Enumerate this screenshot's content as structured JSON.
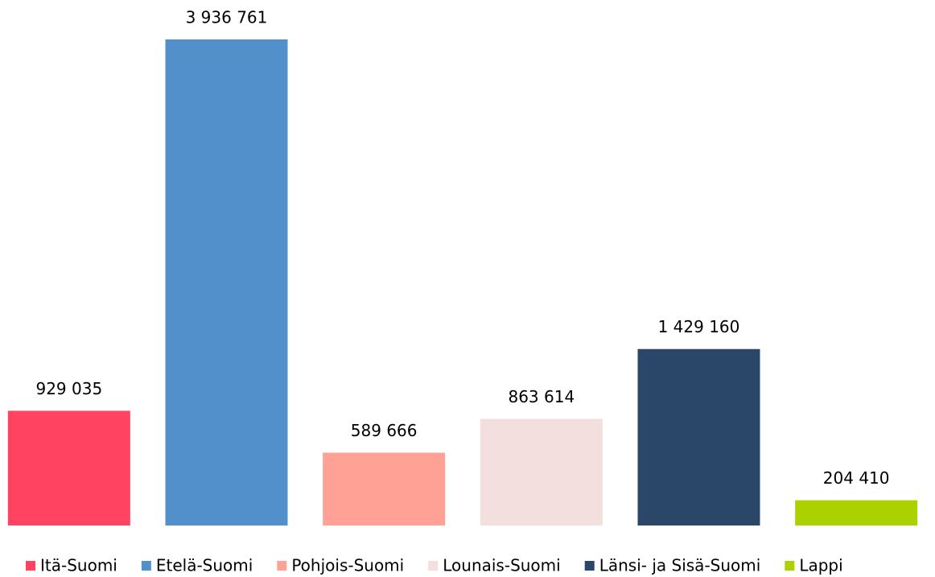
{
  "chart_data": {
    "type": "bar",
    "categories": [
      "Itä-Suomi",
      "Etelä-Suomi",
      "Pohjois-Suomi",
      "Lounais-Suomi",
      "Länsi- ja Sisä-Suomi",
      "Lappi"
    ],
    "values": [
      929035,
      3936761,
      589666,
      863614,
      1429160,
      204410
    ],
    "value_labels": [
      "929 035",
      "3 936 761",
      "589 666",
      "863 614",
      "1 429 160",
      "204 410"
    ],
    "colors": [
      "#ff4361",
      "#5290cc",
      "#ffa195",
      "#f3dfdd",
      "#2a4669",
      "#acd100"
    ]
  }
}
